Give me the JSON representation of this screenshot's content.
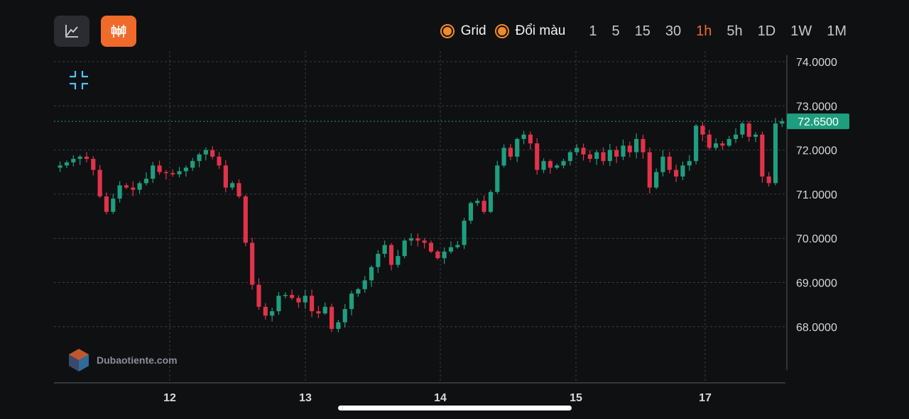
{
  "toolbar": {
    "chart_types": [
      {
        "name": "line-chart-icon",
        "active": false
      },
      {
        "name": "candlestick-icon",
        "active": true
      }
    ],
    "toggles": [
      {
        "label": "Grid",
        "checked": true
      },
      {
        "label": "Đổi màu",
        "checked": true
      }
    ],
    "timeframes": [
      "1",
      "5",
      "15",
      "30",
      "1h",
      "5h",
      "1D",
      "1W",
      "1M"
    ],
    "active_timeframe": "1h"
  },
  "watermark": "Dubaotiente.com",
  "colors": {
    "background": "#0f1012",
    "grid": "#3a3d42",
    "up": "#1f9e7f",
    "down": "#e0334a",
    "accent": "#f06a2a",
    "last_price_line": "#1f9e7f"
  },
  "chart_data": {
    "type": "candlestick",
    "grid": true,
    "ylim": [
      67.0,
      74.5
    ],
    "y_ticks": [
      "74.0000",
      "73.0000",
      "72.0000",
      "71.0000",
      "70.0000",
      "69.0000",
      "68.0000"
    ],
    "x_ticks": [
      "12",
      "13",
      "14",
      "15",
      "17"
    ],
    "last_price": 72.65,
    "last_price_label": "72.6500",
    "closes": [
      71.65,
      71.72,
      71.8,
      71.85,
      71.8,
      71.55,
      70.95,
      70.6,
      70.9,
      71.2,
      71.15,
      71.1,
      71.25,
      71.35,
      71.65,
      71.5,
      71.48,
      71.45,
      71.52,
      71.6,
      71.75,
      71.9,
      72.0,
      71.85,
      71.65,
      71.15,
      71.25,
      70.95,
      69.9,
      68.95,
      68.45,
      68.25,
      68.35,
      68.7,
      68.72,
      68.65,
      68.55,
      68.7,
      68.35,
      68.3,
      68.45,
      67.95,
      68.1,
      68.4,
      68.75,
      68.85,
      69.05,
      69.35,
      69.65,
      69.85,
      69.4,
      69.6,
      69.95,
      70.0,
      69.95,
      69.9,
      69.7,
      69.55,
      69.7,
      69.8,
      69.85,
      70.4,
      70.8,
      70.85,
      70.6,
      71.05,
      71.65,
      72.05,
      71.85,
      72.25,
      72.35,
      72.15,
      71.55,
      71.75,
      71.6,
      71.65,
      71.75,
      71.95,
      72.05,
      71.9,
      71.8,
      71.95,
      71.75,
      72.0,
      71.85,
      72.1,
      71.95,
      72.25,
      71.95,
      71.15,
      71.5,
      71.85,
      71.55,
      71.4,
      71.65,
      71.75,
      72.55,
      72.35,
      72.05,
      72.15,
      72.1,
      72.25,
      72.35,
      72.6,
      72.3,
      72.35,
      71.4,
      71.25,
      72.6,
      72.65
    ]
  }
}
